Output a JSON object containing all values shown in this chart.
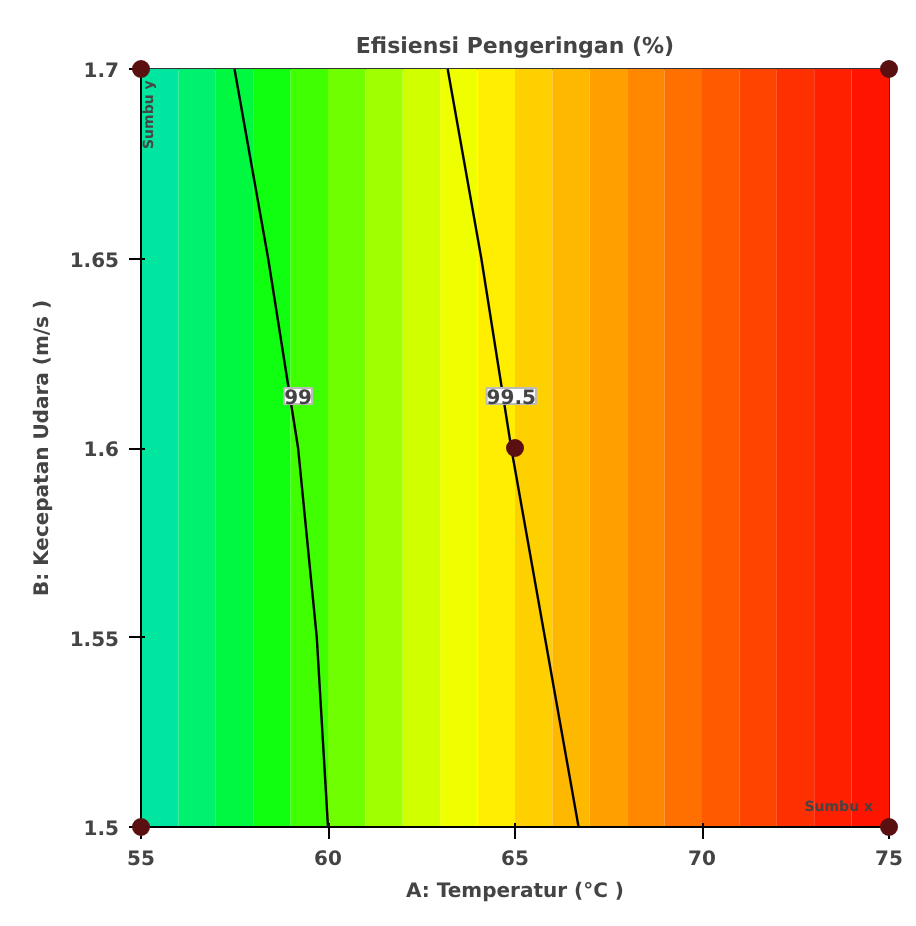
{
  "chart_data": {
    "type": "line",
    "title": "Efisiensi Pengeringan (%)",
    "xlabel": "A: Temperatur (°C )",
    "ylabel": "B: Kecepatan Udara (m/s )",
    "xlim": [
      55,
      75
    ],
    "ylim": [
      1.5,
      1.7
    ],
    "xticks": [
      55,
      60,
      65,
      70,
      75
    ],
    "yticks": [
      1.5,
      1.55,
      1.6,
      1.65,
      1.7
    ],
    "grid": false,
    "marker": "none",
    "line_style": "solid",
    "series": [
      {
        "name": "99",
        "color": "#000000",
        "x": [
          57.5,
          58.4,
          59.2,
          59.7,
          60.0
        ],
        "values": [
          1.7,
          1.65,
          1.6,
          1.55,
          1.5
        ]
      },
      {
        "name": "99.5",
        "color": "#000000",
        "x": [
          63.2,
          64.1,
          64.9,
          65.8,
          66.7
        ],
        "values": [
          1.7,
          1.65,
          1.6,
          1.55,
          1.5
        ]
      },
      {
        "type": "scatter",
        "color": "#5a1010",
        "marker": "circle",
        "x": [
          65,
          55,
          55,
          75,
          75
        ],
        "values": [
          1.6,
          1.5,
          1.7,
          1.7,
          1.5
        ]
      }
    ],
    "bands": [
      {
        "axis": "x",
        "from": 55,
        "to": 56,
        "color": "#00e6a0"
      },
      {
        "axis": "x",
        "from": 56,
        "to": 57,
        "color": "#00f070"
      },
      {
        "axis": "x",
        "from": 57,
        "to": 58,
        "color": "#00f840"
      },
      {
        "axis": "x",
        "from": 58,
        "to": 59,
        "color": "#10ff10"
      },
      {
        "axis": "x",
        "from": 59,
        "to": 60,
        "color": "#40ff00"
      },
      {
        "axis": "x",
        "from": 60,
        "to": 61,
        "color": "#70ff00"
      },
      {
        "axis": "x",
        "from": 61,
        "to": 62,
        "color": "#a0ff00"
      },
      {
        "axis": "x",
        "from": 62,
        "to": 63,
        "color": "#d0ff00"
      },
      {
        "axis": "x",
        "from": 63,
        "to": 64,
        "color": "#f0ff00"
      },
      {
        "axis": "x",
        "from": 64,
        "to": 65,
        "color": "#ffee00"
      },
      {
        "axis": "x",
        "from": 65,
        "to": 66,
        "color": "#ffd000"
      },
      {
        "axis": "x",
        "from": 66,
        "to": 67,
        "color": "#ffb800"
      },
      {
        "axis": "x",
        "from": 67,
        "to": 68,
        "color": "#ffa000"
      },
      {
        "axis": "x",
        "from": 68,
        "to": 69,
        "color": "#ff8800"
      },
      {
        "axis": "x",
        "from": 69,
        "to": 70,
        "color": "#ff7000"
      },
      {
        "axis": "x",
        "from": 70,
        "to": 71,
        "color": "#ff5a00"
      },
      {
        "axis": "x",
        "from": 71,
        "to": 72,
        "color": "#ff4400"
      },
      {
        "axis": "x",
        "from": 72,
        "to": 73,
        "color": "#ff3000"
      },
      {
        "axis": "x",
        "from": 73,
        "to": 74,
        "color": "#ff2000"
      },
      {
        "axis": "x",
        "from": 74,
        "to": 75,
        "color": "#ff1400"
      }
    ],
    "annotations": [
      "Sumbu y",
      "Sumbu x"
    ]
  }
}
